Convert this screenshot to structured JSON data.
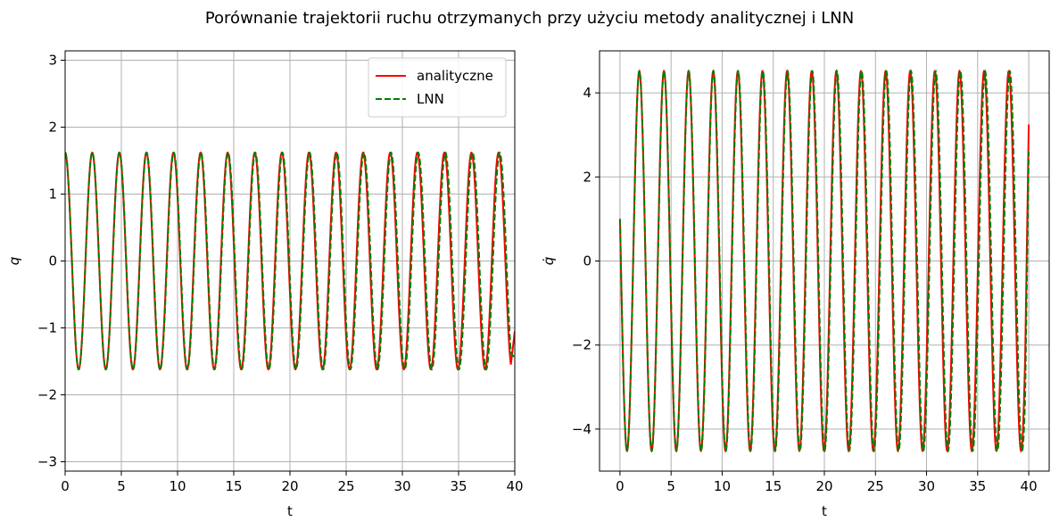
{
  "figure_title": "Porównanie trajektorii ruchu otrzymanych przy użyciu metody analitycznej i LNN",
  "colors": {
    "analytic": "#ff0000",
    "lnn": "#008000",
    "grid": "#b0b0b0"
  },
  "chart_data": [
    {
      "type": "line",
      "xlabel": "t",
      "ylabel": "q",
      "xlim": [
        0,
        40
      ],
      "ylim": [
        -3.14,
        3.14
      ],
      "xticks": [
        0,
        5,
        10,
        15,
        20,
        25,
        30,
        35,
        40
      ],
      "yticks": [
        -3,
        -2,
        -1,
        0,
        1,
        2,
        3
      ],
      "xtick_labels": [
        "0",
        "5",
        "10",
        "15",
        "20",
        "25",
        "30",
        "35",
        "40"
      ],
      "ytick_labels": [
        "−3",
        "−2",
        "−1",
        "0",
        "1",
        "2",
        "3"
      ],
      "grid": true,
      "legend": {
        "placement": "top-right",
        "entries": [
          "analityczne",
          "LNN"
        ]
      },
      "series": [
        {
          "name": "analityczne",
          "style": "solid",
          "color": "#ff0000",
          "amplitude": 1.62,
          "period": 2.41,
          "start_value": 1.62,
          "end_value": -1.05,
          "oscillation": "cosine"
        },
        {
          "name": "LNN",
          "style": "dashed",
          "color": "#008000",
          "amplitude": 1.62,
          "period": 2.416,
          "start_value": 1.62,
          "end_value": -1.45,
          "oscillation": "cosine"
        }
      ]
    },
    {
      "type": "line",
      "xlabel": "t",
      "ylabel": "q̇",
      "xlim": [
        -2,
        42
      ],
      "ylim": [
        -5,
        5
      ],
      "xticks": [
        0,
        5,
        10,
        15,
        20,
        25,
        30,
        35,
        40
      ],
      "yticks": [
        -4,
        -2,
        0,
        2,
        4
      ],
      "xtick_labels": [
        "0",
        "5",
        "10",
        "15",
        "20",
        "25",
        "30",
        "35",
        "40"
      ],
      "ytick_labels": [
        "−4",
        "−2",
        "0",
        "2",
        "4"
      ],
      "grid": true,
      "series": [
        {
          "name": "analityczne",
          "style": "solid",
          "color": "#ff0000",
          "amplitude": 4.52,
          "period": 2.41,
          "start_value": 1.0,
          "end_value": 3.25,
          "oscillation": "sine"
        },
        {
          "name": "LNN",
          "style": "dashed",
          "color": "#008000",
          "amplitude": 4.52,
          "period": 2.416,
          "start_value": 1.0,
          "end_value": 2.6,
          "oscillation": "sine"
        }
      ]
    }
  ]
}
